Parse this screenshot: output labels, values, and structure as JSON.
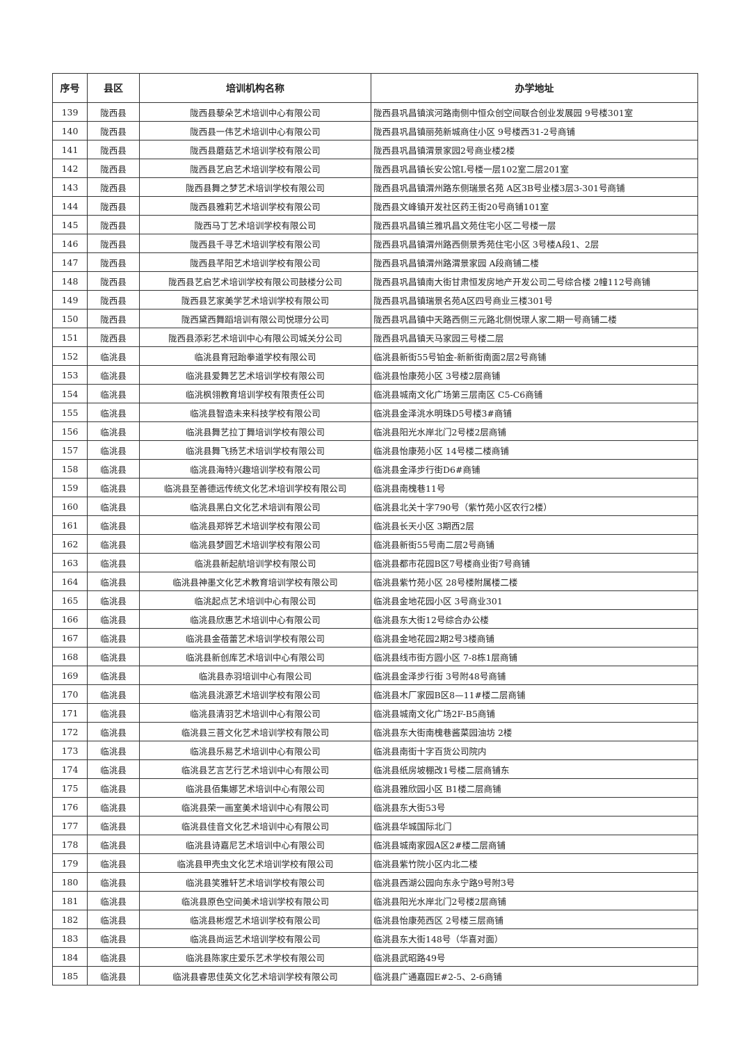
{
  "table": {
    "headers": [
      "序号",
      "县区",
      "培训机构名称",
      "办学地址"
    ],
    "rows": [
      [
        "139",
        "陇西县",
        "陇西县藜朵艺术培训中心有限公司",
        "陇西县巩昌镇滨河路南侧中恒众创空间联合创业发展园 9号楼301室"
      ],
      [
        "140",
        "陇西县",
        "陇西县一伟艺术培训中心有限公司",
        "陇西县巩昌镇丽苑新城商住小区 9号楼西31-2号商铺"
      ],
      [
        "141",
        "陇西县",
        "陇西县蘑菇艺术培训学校有限公司",
        "陇西县巩昌镇渭景家园2号商业楼2楼"
      ],
      [
        "142",
        "陇西县",
        "陇西县艺启艺术培训学校有限公司",
        "陇西县巩昌镇长安公馆L号楼一层102室二层201室"
      ],
      [
        "143",
        "陇西县",
        "陇西县舞之梦艺术培训学校有限公司",
        "陇西县巩昌镇渭州路东侧瑞景名苑 A区3B号业楼3层3-301号商铺"
      ],
      [
        "144",
        "陇西县",
        "陇西县雅莉艺术培训学校有限公司",
        "陇西县文峰镇开发社区药王街20号商铺101室"
      ],
      [
        "145",
        "陇西县",
        "陇西马丁艺术培训学校有限公司",
        "陇西县巩昌镇兰雅巩昌文苑住宅小区二号楼一层"
      ],
      [
        "146",
        "陇西县",
        "陇西县千寻艺术培训学校有限公司",
        "陇西县巩昌镇渭州路西侧景秀苑住宅小区 3号楼A段1、2层"
      ],
      [
        "147",
        "陇西县",
        "陇西县芊阳艺术培训学校有限公司",
        "陇西县巩昌镇渭州路渭景家园 A段商铺二楼"
      ],
      [
        "148",
        "陇西县",
        "陇西县艺启艺术培训学校有限公司鼓楼分公司",
        "陇西县巩昌镇南大街甘肃恒发房地产开发公司二号综合楼 2幢112号商铺"
      ],
      [
        "149",
        "陇西县",
        "陇西县艺家美学艺术培训学校有限公司",
        "陇西县巩昌镇瑞景名苑A区四号商业三楼301号"
      ],
      [
        "150",
        "陇西县",
        "陇西黛西舞蹈培训有限公司悦璟分公司",
        "陇西县巩昌镇中天路西侧三元路北侧悦璟人家二期一号商铺二楼"
      ],
      [
        "151",
        "陇西县",
        "陇西县添彩艺术培训中心有限公司城关分公司",
        "陇西县巩昌镇天马家园三号楼二层"
      ],
      [
        "152",
        "临洮县",
        "临洮县育冠跆拳道学校有限公司",
        "临洮县新街55号铂金-新新街南面2层2号商铺"
      ],
      [
        "153",
        "临洮县",
        "临洮县爱舞艺艺术培训学校有限公司",
        "临洮县怡康苑小区 3号楼2层商铺"
      ],
      [
        "154",
        "临洮县",
        "临洮枫翎教育培训学校有限责任公司",
        "临洮县城南文化广场第三层南区 C5-C6商铺"
      ],
      [
        "155",
        "临洮县",
        "临洮县智造未来科技学校有限公司",
        "临洮县金泽洮水明珠D5号楼3#商铺"
      ],
      [
        "156",
        "临洮县",
        "临洮县舞艺拉丁舞培训学校有限公司",
        "临洮县阳光水岸北门2号楼2层商铺"
      ],
      [
        "157",
        "临洮县",
        "临洮县舞飞扬艺术培训学校有限公司",
        "临洮县怡康苑小区 14号楼二楼商铺"
      ],
      [
        "158",
        "临洮县",
        "临洮县海特兴趣培训学校有限公司",
        "临洮县金泽步行街D6#商铺"
      ],
      [
        "159",
        "临洮县",
        "临洮县至善德远传统文化艺术培训学校有限公司",
        "临洮县南槐巷11号"
      ],
      [
        "160",
        "临洮县",
        "临洮县黑白文化艺术培训有限公司",
        "临洮县北关十字790号（紫竹苑小区农行2楼）"
      ],
      [
        "161",
        "临洮县",
        "临洮县郑铧艺术培训学校有限公司",
        "临洮县长天小区 3期西2层"
      ],
      [
        "162",
        "临洮县",
        "临洮县梦圆艺术培训学校有限公司",
        "临洮县新街55号南二层2号商铺"
      ],
      [
        "163",
        "临洮县",
        "临洮县新起航培训学校有限公司",
        "临洮县都市花园B区7号楼商业街7号商铺"
      ],
      [
        "164",
        "临洮县",
        "临洮县神墨文化艺术教育培训学校有限公司",
        "临洮县紫竹苑小区 28号楼附属楼二楼"
      ],
      [
        "165",
        "临洮县",
        "临洮起点艺术培训中心有限公司",
        "临洮县金地花园小区 3号商业301"
      ],
      [
        "166",
        "临洮县",
        "临洮县欣惠艺术培训中心有限公司",
        "临洮县东大街12号综合办公楼"
      ],
      [
        "167",
        "临洮县",
        "临洮县金蓓蕾艺术培训学校有限公司",
        "临洮县金地花园2期2号3楼商铺"
      ],
      [
        "168",
        "临洮县",
        "临洮县新创库艺术培训中心有限公司",
        "临洮县线市街方圆小区 7-8栋1层商铺"
      ],
      [
        "169",
        "临洮县",
        "临洮县赤羽培训中心有限公司",
        "临洮县金泽步行街 3号附48号商铺"
      ],
      [
        "170",
        "临洮县",
        "临洮县洮源艺术培训学校有限公司",
        "临洮县木厂家园B区8—11#楼二层商铺"
      ],
      [
        "171",
        "临洮县",
        "临洮县清羽艺术培训中心有限公司",
        "临洮县城南文化广场2F-B5商铺"
      ],
      [
        "172",
        "临洮县",
        "临洮县三菩文化艺术培训学校有限公司",
        "临洮县东大街南槐巷酱菜园油坊 2楼"
      ],
      [
        "173",
        "临洮县",
        "临洮县乐易艺术培训中心有限公司",
        "临洮县南街十字百货公司院内"
      ],
      [
        "174",
        "临洮县",
        "临洮县艺言艺行艺术培训中心有限公司",
        "临洮县纸房坡棚改1号楼二层商铺东"
      ],
      [
        "175",
        "临洮县",
        "临洮县佰集娜艺术培训中心有限公司",
        "临洮县雅欣园小区 B1楼二层商铺"
      ],
      [
        "176",
        "临洮县",
        "临洮县荣一画室美术培训中心有限公司",
        "临洮县东大街53号"
      ],
      [
        "177",
        "临洮县",
        "临洮县佳音文化艺术培训中心有限公司",
        "临洮县华城国际北门"
      ],
      [
        "178",
        "临洮县",
        "临洮县诗嘉尼艺术培训中心有限公司",
        "临洮县城南家园A区2#楼二层商铺"
      ],
      [
        "179",
        "临洮县",
        "临洮县甲壳虫文化艺术培训学校有限公司",
        "临洮县紫竹院小区内北二楼"
      ],
      [
        "180",
        "临洮县",
        "临洮县笑雅轩艺术培训学校有限公司",
        "临洮县西湖公园向东永宁路9号附3号"
      ],
      [
        "181",
        "临洮县",
        "临洮县原色空间美术培训学校有限公司",
        "临洮县阳光水岸北门2号楼2层商铺"
      ],
      [
        "182",
        "临洮县",
        "临洮县彬煜艺术培训学校有限公司",
        "临洮县怡康苑西区 2号楼三层商铺"
      ],
      [
        "183",
        "临洮县",
        "临洮县尚运艺术培训学校有限公司",
        "临洮县东大街148号（华喜对面）"
      ],
      [
        "184",
        "临洮县",
        "临洮县陈家庄爱乐艺术学校有限公司",
        "临洮县武昭路49号"
      ],
      [
        "185",
        "临洮县",
        "临洮县睿思佳英文化艺术培训学校有限公司",
        "临洮县广通嘉园E#2-5、2-6商铺"
      ]
    ]
  }
}
